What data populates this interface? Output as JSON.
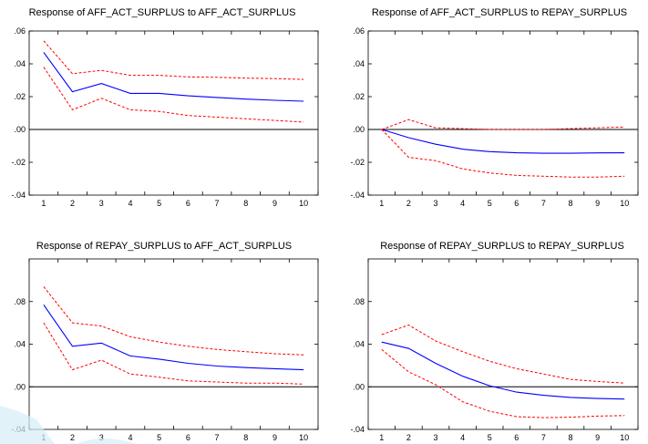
{
  "chart_data": [
    {
      "type": "line",
      "title": "Response of AFF_ACT_SURPLUS to AFF_ACT_SURPLUS",
      "xlabel": "",
      "ylabel": "",
      "x": [
        1,
        2,
        3,
        4,
        5,
        6,
        7,
        8,
        9,
        10
      ],
      "xtick_labels": [
        "1",
        "2",
        "3",
        "4",
        "5",
        "6",
        "7",
        "8",
        "9",
        "10"
      ],
      "ylim": [
        -0.04,
        0.06
      ],
      "ytick_values": [
        -0.04,
        -0.02,
        0.0,
        0.02,
        0.04,
        0.06
      ],
      "ytick_labels": [
        "-.04",
        "-.02",
        ".00",
        ".02",
        ".04",
        ".06"
      ],
      "grid": false,
      "series": [
        {
          "role": "response",
          "color": "#0000ff",
          "dashed": false,
          "values": [
            0.047,
            0.023,
            0.028,
            0.022,
            0.022,
            0.0205,
            0.0195,
            0.0185,
            0.0178,
            0.0172
          ]
        },
        {
          "role": "upper",
          "color": "#ff0000",
          "dashed": true,
          "values": [
            0.054,
            0.034,
            0.036,
            0.033,
            0.033,
            0.032,
            0.0318,
            0.0313,
            0.031,
            0.0305
          ]
        },
        {
          "role": "lower",
          "color": "#ff0000",
          "dashed": true,
          "values": [
            0.038,
            0.012,
            0.019,
            0.012,
            0.011,
            0.0085,
            0.0075,
            0.0065,
            0.0055,
            0.0045
          ]
        }
      ]
    },
    {
      "type": "line",
      "title": "Response of AFF_ACT_SURPLUS to REPAY_SURPLUS",
      "xlabel": "",
      "ylabel": "",
      "x": [
        1,
        2,
        3,
        4,
        5,
        6,
        7,
        8,
        9,
        10
      ],
      "xtick_labels": [
        "1",
        "2",
        "3",
        "4",
        "5",
        "6",
        "7",
        "8",
        "9",
        "10"
      ],
      "ylim": [
        -0.04,
        0.06
      ],
      "ytick_values": [
        -0.04,
        -0.02,
        0.0,
        0.02,
        0.04,
        0.06
      ],
      "ytick_labels": [
        "-.04",
        "-.02",
        ".00",
        ".02",
        ".04",
        ".06"
      ],
      "grid": false,
      "series": [
        {
          "role": "response",
          "color": "#0000ff",
          "dashed": false,
          "values": [
            0.0,
            -0.005,
            -0.009,
            -0.012,
            -0.0135,
            -0.0142,
            -0.0145,
            -0.0145,
            -0.0143,
            -0.0142
          ]
        },
        {
          "role": "upper",
          "color": "#ff0000",
          "dashed": true,
          "values": [
            0.0,
            0.006,
            0.001,
            0.0005,
            0.0,
            0.0,
            0.0,
            0.0005,
            0.001,
            0.0015
          ]
        },
        {
          "role": "lower",
          "color": "#ff0000",
          "dashed": true,
          "values": [
            0.0,
            -0.017,
            -0.019,
            -0.024,
            -0.0265,
            -0.028,
            -0.0285,
            -0.029,
            -0.029,
            -0.0285
          ]
        }
      ]
    },
    {
      "type": "line",
      "title": "Response of REPAY_SURPLUS to AFF_ACT_SURPLUS",
      "xlabel": "",
      "ylabel": "",
      "x": [
        1,
        2,
        3,
        4,
        5,
        6,
        7,
        8,
        9,
        10
      ],
      "xtick_labels": [
        "1",
        "2",
        "3",
        "4",
        "5",
        "6",
        "7",
        "8",
        "9",
        "10"
      ],
      "ylim": [
        -0.04,
        0.12
      ],
      "ytick_values": [
        -0.04,
        0.0,
        0.04,
        0.08
      ],
      "ytick_labels": [
        "-.04",
        ".00",
        ".04",
        ".08"
      ],
      "grid": false,
      "series": [
        {
          "role": "response",
          "color": "#0000ff",
          "dashed": false,
          "values": [
            0.077,
            0.038,
            0.041,
            0.029,
            0.026,
            0.022,
            0.0195,
            0.018,
            0.017,
            0.016
          ]
        },
        {
          "role": "upper",
          "color": "#ff0000",
          "dashed": true,
          "values": [
            0.094,
            0.06,
            0.057,
            0.047,
            0.042,
            0.038,
            0.035,
            0.033,
            0.031,
            0.03
          ]
        },
        {
          "role": "lower",
          "color": "#ff0000",
          "dashed": true,
          "values": [
            0.06,
            0.016,
            0.025,
            0.012,
            0.009,
            0.0055,
            0.0045,
            0.0035,
            0.0035,
            0.0025
          ]
        }
      ]
    },
    {
      "type": "line",
      "title": "Response of REPAY_SURPLUS to REPAY_SURPLUS",
      "xlabel": "",
      "ylabel": "",
      "x": [
        1,
        2,
        3,
        4,
        5,
        6,
        7,
        8,
        9,
        10
      ],
      "xtick_labels": [
        "1",
        "2",
        "3",
        "4",
        "5",
        "6",
        "7",
        "8",
        "9",
        "10"
      ],
      "ylim": [
        -0.04,
        0.12
      ],
      "ytick_values": [
        -0.04,
        0.0,
        0.04,
        0.08
      ],
      "ytick_labels": [
        "-.04",
        ".00",
        ".04",
        ".08"
      ],
      "grid": false,
      "series": [
        {
          "role": "response",
          "color": "#0000ff",
          "dashed": false,
          "values": [
            0.042,
            0.036,
            0.022,
            0.01,
            0.001,
            -0.005,
            -0.008,
            -0.01,
            -0.011,
            -0.0115
          ]
        },
        {
          "role": "upper",
          "color": "#ff0000",
          "dashed": true,
          "values": [
            0.049,
            0.058,
            0.043,
            0.033,
            0.024,
            0.017,
            0.012,
            0.007,
            0.005,
            0.0035
          ]
        },
        {
          "role": "lower",
          "color": "#ff0000",
          "dashed": true,
          "values": [
            0.035,
            0.014,
            0.002,
            -0.014,
            -0.023,
            -0.028,
            -0.029,
            -0.0285,
            -0.0275,
            -0.027
          ]
        }
      ]
    }
  ]
}
